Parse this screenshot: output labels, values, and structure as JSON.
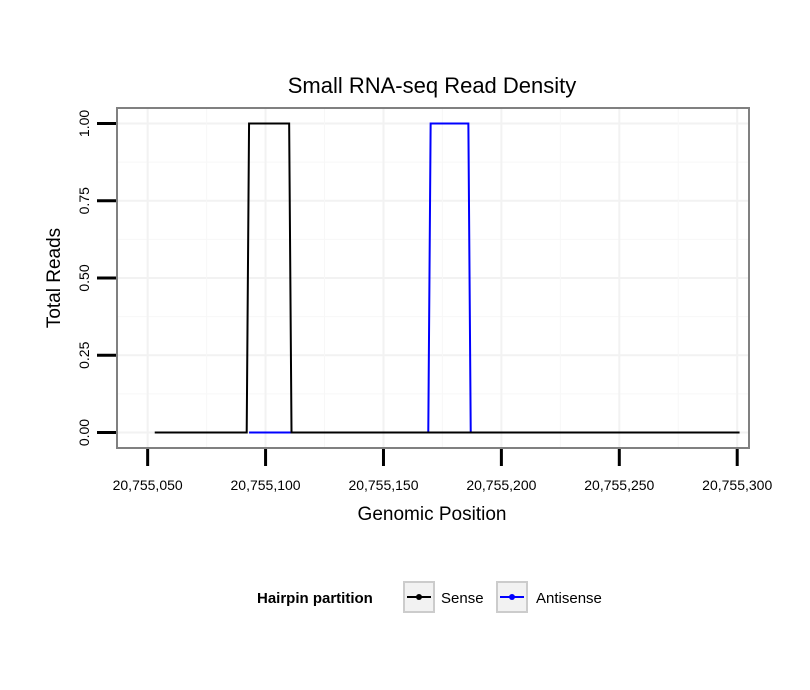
{
  "chart_data": {
    "type": "line",
    "title": "Small RNA-seq Read Density",
    "xlabel": "Genomic Position",
    "ylabel": "Total Reads",
    "xlim": [
      20755037,
      20755305
    ],
    "ylim": [
      -0.05,
      1.05
    ],
    "x_ticks": [
      20755050,
      20755100,
      20755150,
      20755200,
      20755250,
      20755300
    ],
    "x_tick_labels": [
      "20,755,050",
      "20,755,100",
      "20,755,150",
      "20,755,200",
      "20,755,250",
      "20,755,300"
    ],
    "y_ticks": [
      0,
      0.25,
      0.5,
      0.75,
      1
    ],
    "y_tick_labels": [
      "0.00",
      "0.25",
      "0.50",
      "0.75",
      "1.00"
    ],
    "grid": true,
    "legend": {
      "title": "Hairpin partition",
      "position": "bottom"
    },
    "series": [
      {
        "name": "Sense",
        "color": "#000000",
        "x": [
          20755053,
          20755092,
          20755093,
          20755110,
          20755111,
          20755301
        ],
        "y": [
          0,
          0,
          1,
          1,
          0,
          0
        ]
      },
      {
        "name": "Antisense",
        "color": "#0000ff",
        "x": [
          20755093,
          20755110,
          20755169,
          20755170,
          20755186,
          20755187
        ],
        "y": [
          0,
          0,
          0,
          1,
          1,
          0
        ]
      }
    ]
  }
}
